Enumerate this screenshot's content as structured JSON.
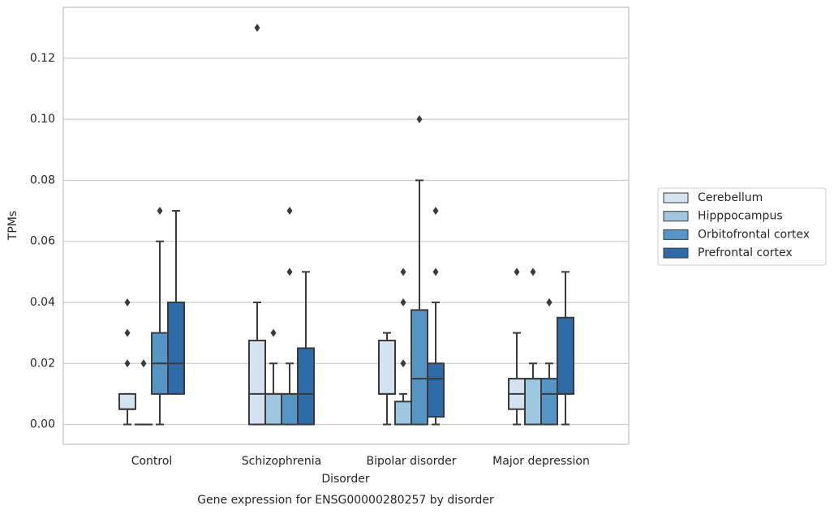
{
  "chart_data": {
    "type": "box",
    "title": "Gene expression for ENSG00000280257 by disorder",
    "x_label": "Disorder",
    "y_label": "TPMs",
    "categories": [
      "Control",
      "Schizophrenia",
      "Bipolar disorder",
      "Major depression"
    ],
    "ylim": [
      -0.0065,
      0.1367
    ],
    "yticks": [
      {
        "value": 0,
        "label": "0.00"
      },
      0.02,
      0.04,
      0.06,
      0.08,
      {
        "value": 0.1,
        "label": "0.10"
      },
      0.12
    ],
    "grid": true,
    "legend_position": "right",
    "series": [
      {
        "name": "Cerebellum",
        "color": "#d3e3f2",
        "values": [
          {
            "whislo": 0,
            "q1": 0.005,
            "med": 0.005,
            "q3": 0.01,
            "whishi": 0.01,
            "fliers": [
              0.02,
              0.03,
              0.04
            ]
          },
          {
            "whislo": 0,
            "q1": 0,
            "med": 0.01,
            "q3": 0.0275,
            "whishi": 0.04,
            "fliers": [
              0.13
            ]
          },
          {
            "whislo": 0,
            "q1": 0.01,
            "med": 0.01,
            "q3": 0.0275,
            "whishi": 0.03,
            "fliers": []
          },
          {
            "whislo": 0,
            "q1": 0.005,
            "med": 0.01,
            "q3": 0.015,
            "whishi": 0.03,
            "fliers": [
              0.05
            ]
          }
        ]
      },
      {
        "name": "Hipppocampus",
        "color": "#9dc6e0",
        "values": [
          {
            "whislo": 0,
            "q1": 0,
            "med": 0,
            "q3": 0,
            "whishi": 0,
            "fliers": [
              0.02
            ]
          },
          {
            "whislo": 0,
            "q1": 0,
            "med": 0.01,
            "q3": 0.01,
            "whishi": 0.02,
            "fliers": [
              0.03
            ]
          },
          {
            "whislo": 0,
            "q1": 0,
            "med": 0,
            "q3": 0.0075,
            "whishi": 0.01,
            "fliers": [
              0.02,
              0.04,
              0.05
            ]
          },
          {
            "whislo": 0,
            "q1": 0,
            "med": 0.015,
            "q3": 0.015,
            "whishi": 0.02,
            "fliers": [
              0.05
            ]
          }
        ]
      },
      {
        "name": "Orbitofrontal cortex",
        "color": "#5696c6",
        "values": [
          {
            "whislo": 0,
            "q1": 0.01,
            "med": 0.02,
            "q3": 0.03,
            "whishi": 0.06,
            "fliers": [
              0.07
            ]
          },
          {
            "whislo": 0,
            "q1": 0,
            "med": 0.01,
            "q3": 0.01,
            "whishi": 0.02,
            "fliers": [
              0.05,
              0.07
            ]
          },
          {
            "whislo": 0,
            "q1": 0,
            "med": 0.015,
            "q3": 0.0375,
            "whishi": 0.08,
            "fliers": [
              0.1
            ]
          },
          {
            "whislo": 0,
            "q1": 0,
            "med": 0.01,
            "q3": 0.015,
            "whishi": 0.02,
            "fliers": [
              0.04,
              0.04
            ]
          }
        ]
      },
      {
        "name": "Prefrontal cortex",
        "color": "#2d6ba9",
        "values": [
          {
            "whislo": 0.01,
            "q1": 0.01,
            "med": 0.02,
            "q3": 0.04,
            "whishi": 0.07,
            "fliers": []
          },
          {
            "whislo": 0,
            "q1": 0,
            "med": 0.01,
            "q3": 0.025,
            "whishi": 0.05,
            "fliers": []
          },
          {
            "whislo": 0,
            "q1": 0.0025,
            "med": 0.015,
            "q3": 0.02,
            "whishi": 0.04,
            "fliers": [
              0.05,
              0.07
            ]
          },
          {
            "whislo": 0,
            "q1": 0.01,
            "med": 0.01,
            "q3": 0.035,
            "whishi": 0.05,
            "fliers": []
          }
        ]
      }
    ]
  }
}
